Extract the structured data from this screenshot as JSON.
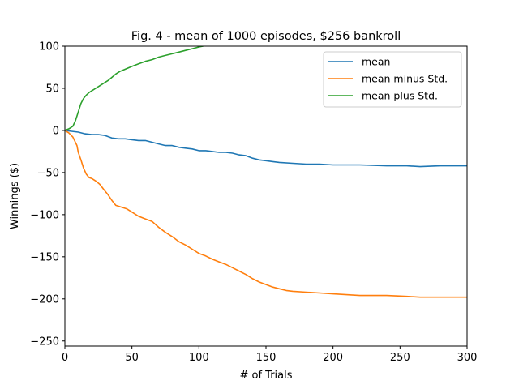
{
  "chart_data": {
    "type": "line",
    "title": "Fig. 4 - mean of 1000 episodes, $256 bankroll",
    "xlabel": "# of Trials",
    "ylabel": "Winnings ($)",
    "xlim": [
      0,
      300
    ],
    "ylim": [
      -256,
      100
    ],
    "xticks": [
      0,
      50,
      100,
      150,
      200,
      250,
      300
    ],
    "yticks": [
      -250,
      -200,
      -150,
      -100,
      -50,
      0,
      50,
      100
    ],
    "grid": false,
    "legend_position": "top-right",
    "series": [
      {
        "name": "mean",
        "color": "#1f77b4",
        "points": [
          [
            0,
            0
          ],
          [
            5,
            -1
          ],
          [
            10,
            -2
          ],
          [
            15,
            -4
          ],
          [
            20,
            -5
          ],
          [
            25,
            -5
          ],
          [
            30,
            -6
          ],
          [
            35,
            -9
          ],
          [
            40,
            -10
          ],
          [
            45,
            -10
          ],
          [
            50,
            -11
          ],
          [
            55,
            -12
          ],
          [
            60,
            -12
          ],
          [
            65,
            -14
          ],
          [
            70,
            -16
          ],
          [
            75,
            -18
          ],
          [
            80,
            -18
          ],
          [
            85,
            -20
          ],
          [
            90,
            -21
          ],
          [
            95,
            -22
          ],
          [
            100,
            -24
          ],
          [
            105,
            -24
          ],
          [
            110,
            -25
          ],
          [
            115,
            -26
          ],
          [
            120,
            -26
          ],
          [
            125,
            -27
          ],
          [
            130,
            -29
          ],
          [
            135,
            -30
          ],
          [
            140,
            -33
          ],
          [
            145,
            -35
          ],
          [
            150,
            -36
          ],
          [
            155,
            -37
          ],
          [
            160,
            -38
          ],
          [
            170,
            -39
          ],
          [
            180,
            -40
          ],
          [
            190,
            -40
          ],
          [
            200,
            -41
          ],
          [
            220,
            -41
          ],
          [
            240,
            -42
          ],
          [
            255,
            -42
          ],
          [
            265,
            -43
          ],
          [
            280,
            -42
          ],
          [
            290,
            -42
          ],
          [
            300,
            -42
          ]
        ]
      },
      {
        "name": "mean minus Std.",
        "color": "#ff7f0e",
        "points": [
          [
            0,
            0
          ],
          [
            3,
            -3
          ],
          [
            6,
            -8
          ],
          [
            9,
            -18
          ],
          [
            10,
            -26
          ],
          [
            12,
            -35
          ],
          [
            14,
            -45
          ],
          [
            16,
            -52
          ],
          [
            18,
            -56
          ],
          [
            20,
            -57
          ],
          [
            23,
            -60
          ],
          [
            26,
            -64
          ],
          [
            29,
            -70
          ],
          [
            32,
            -76
          ],
          [
            35,
            -83
          ],
          [
            38,
            -89
          ],
          [
            42,
            -91
          ],
          [
            46,
            -93
          ],
          [
            50,
            -97
          ],
          [
            55,
            -102
          ],
          [
            60,
            -105
          ],
          [
            65,
            -108
          ],
          [
            70,
            -115
          ],
          [
            75,
            -121
          ],
          [
            80,
            -126
          ],
          [
            85,
            -132
          ],
          [
            90,
            -136
          ],
          [
            95,
            -141
          ],
          [
            100,
            -146
          ],
          [
            105,
            -149
          ],
          [
            110,
            -153
          ],
          [
            115,
            -156
          ],
          [
            120,
            -159
          ],
          [
            125,
            -163
          ],
          [
            130,
            -167
          ],
          [
            135,
            -171
          ],
          [
            140,
            -176
          ],
          [
            145,
            -180
          ],
          [
            150,
            -183
          ],
          [
            155,
            -186
          ],
          [
            160,
            -188
          ],
          [
            165,
            -190
          ],
          [
            170,
            -191
          ],
          [
            180,
            -192
          ],
          [
            190,
            -193
          ],
          [
            200,
            -194
          ],
          [
            210,
            -195
          ],
          [
            220,
            -196
          ],
          [
            240,
            -196
          ],
          [
            255,
            -197
          ],
          [
            265,
            -198
          ],
          [
            280,
            -198
          ],
          [
            290,
            -198
          ],
          [
            300,
            -198
          ]
        ]
      },
      {
        "name": "mean plus Std.",
        "color": "#2ca02c",
        "points": [
          [
            0,
            0
          ],
          [
            3,
            2
          ],
          [
            6,
            5
          ],
          [
            8,
            12
          ],
          [
            10,
            22
          ],
          [
            12,
            32
          ],
          [
            14,
            38
          ],
          [
            16,
            42
          ],
          [
            18,
            45
          ],
          [
            20,
            47
          ],
          [
            23,
            50
          ],
          [
            26,
            53
          ],
          [
            29,
            56
          ],
          [
            32,
            59
          ],
          [
            35,
            63
          ],
          [
            38,
            67
          ],
          [
            41,
            70
          ],
          [
            44,
            72
          ],
          [
            47,
            74
          ],
          [
            50,
            76
          ],
          [
            55,
            79
          ],
          [
            60,
            82
          ],
          [
            65,
            84
          ],
          [
            70,
            87
          ],
          [
            75,
            89
          ],
          [
            80,
            91
          ],
          [
            85,
            93
          ],
          [
            90,
            95
          ],
          [
            95,
            97
          ],
          [
            100,
            99
          ],
          [
            103,
            100
          ]
        ]
      }
    ]
  }
}
